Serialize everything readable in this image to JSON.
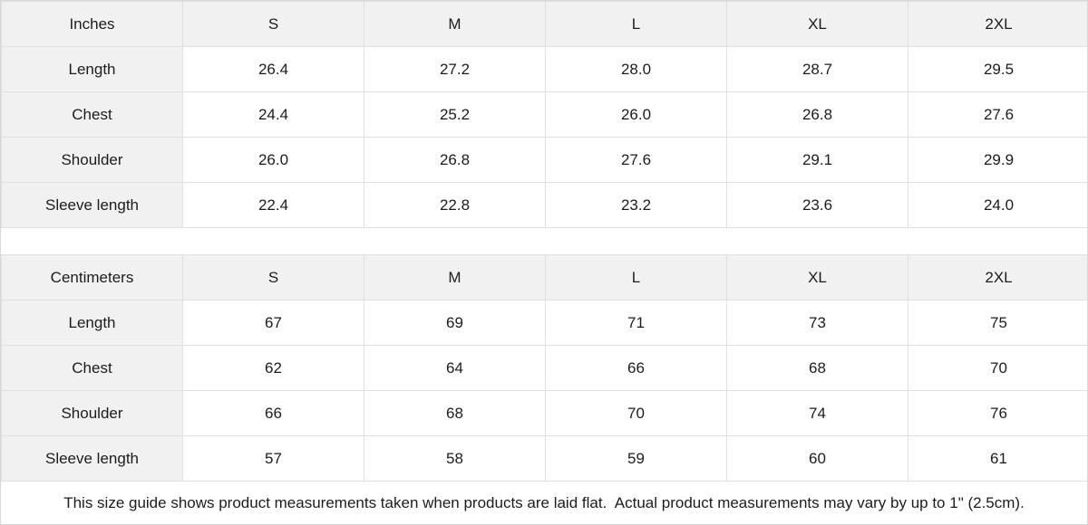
{
  "tables": [
    {
      "name": "inches",
      "unit_label": "Inches",
      "sizes": [
        "S",
        "M",
        "L",
        "XL",
        "2XL"
      ],
      "rows": [
        {
          "label": "Length",
          "values": [
            "26.4",
            "27.2",
            "28.0",
            "28.7",
            "29.5"
          ]
        },
        {
          "label": "Chest",
          "values": [
            "24.4",
            "25.2",
            "26.0",
            "26.8",
            "27.6"
          ]
        },
        {
          "label": "Shoulder",
          "values": [
            "26.0",
            "26.8",
            "27.6",
            "29.1",
            "29.9"
          ]
        },
        {
          "label": "Sleeve length",
          "values": [
            "22.4",
            "22.8",
            "23.2",
            "23.6",
            "24.0"
          ]
        }
      ]
    },
    {
      "name": "centimeters",
      "unit_label": "Centimeters",
      "sizes": [
        "S",
        "M",
        "L",
        "XL",
        "2XL"
      ],
      "rows": [
        {
          "label": "Length",
          "values": [
            "67",
            "69",
            "71",
            "73",
            "75"
          ]
        },
        {
          "label": "Chest",
          "values": [
            "62",
            "64",
            "66",
            "68",
            "70"
          ]
        },
        {
          "label": "Shoulder",
          "values": [
            "66",
            "68",
            "70",
            "74",
            "76"
          ]
        },
        {
          "label": "Sleeve length",
          "values": [
            "57",
            "58",
            "59",
            "60",
            "61"
          ]
        }
      ]
    }
  ],
  "footer": {
    "note": "This size guide shows product measurements taken when products are laid flat.  Actual product measurements may vary by up to 1\" (2.5cm)."
  },
  "colors": {
    "shaded_cell_bg": "#f1f1f1",
    "border": "#e0e0e0",
    "text": "#1c1c1c"
  }
}
